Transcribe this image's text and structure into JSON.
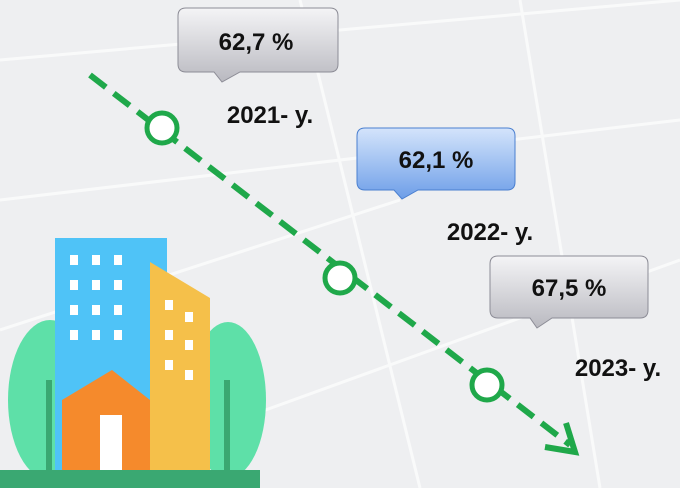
{
  "items": [
    {
      "value": "62,7 %",
      "year": "2021- y."
    },
    {
      "value": "62,1 %",
      "year": "2022- y."
    },
    {
      "value": "67,5 %",
      "year": "2023- y."
    }
  ]
}
